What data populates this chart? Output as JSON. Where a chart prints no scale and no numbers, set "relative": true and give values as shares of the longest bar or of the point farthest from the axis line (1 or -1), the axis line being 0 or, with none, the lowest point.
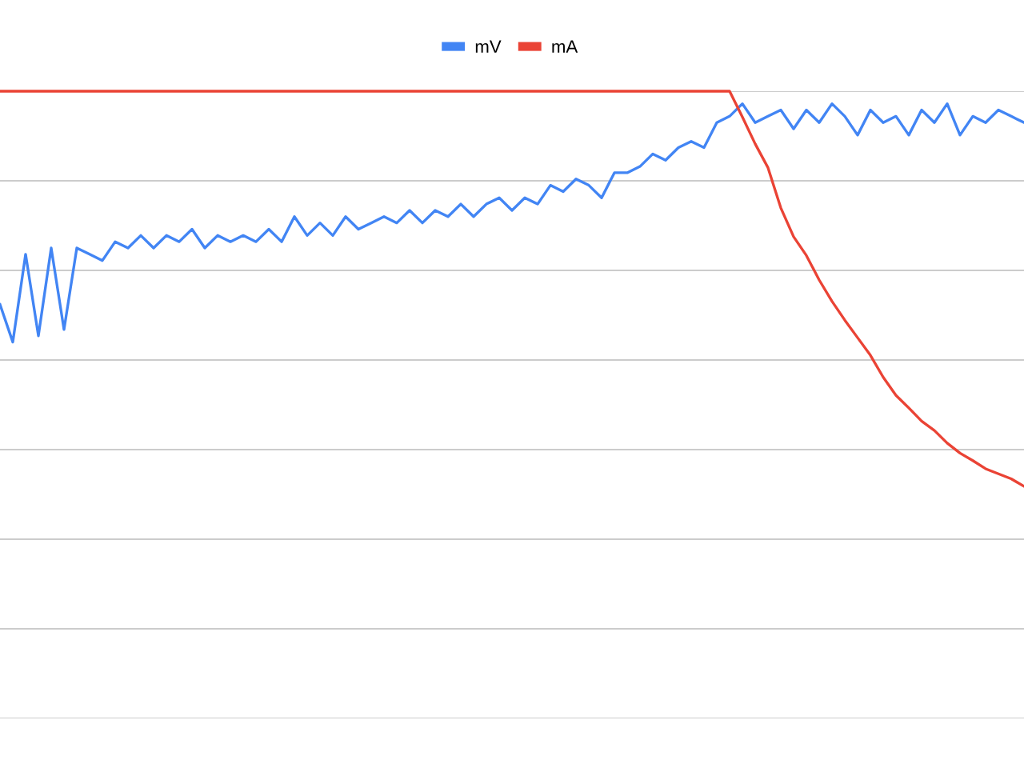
{
  "chart_data": {
    "type": "line",
    "relative": true,
    "grid": "y",
    "legend": "top",
    "marker": "none",
    "line_style": "solid",
    "categories": [
      null,
      null,
      null,
      null,
      null,
      null,
      null,
      null,
      null,
      null,
      null,
      null,
      null,
      null,
      null,
      null,
      null,
      null,
      null,
      null,
      null,
      null,
      null,
      null,
      null,
      null,
      null,
      null,
      null,
      null,
      null,
      null,
      null,
      null,
      null,
      null,
      null,
      null,
      null,
      null,
      null,
      null,
      null,
      null,
      null,
      null,
      null,
      null,
      null,
      null,
      null,
      null,
      null,
      null,
      null,
      null,
      null,
      null,
      null,
      null,
      null,
      null,
      null,
      null,
      null,
      null,
      null,
      null,
      null,
      null,
      null,
      null,
      null,
      null,
      null,
      null,
      null,
      null,
      null,
      null,
      null
    ],
    "series": [
      {
        "name": "mV",
        "color": "#4285f4",
        "values": [
          0.66,
          0.6,
          0.74,
          0.61,
          0.75,
          0.62,
          0.75,
          0.74,
          0.73,
          0.76,
          0.75,
          0.77,
          0.75,
          0.77,
          0.76,
          0.78,
          0.75,
          0.77,
          0.76,
          0.77,
          0.76,
          0.78,
          0.76,
          0.8,
          0.77,
          0.79,
          0.77,
          0.8,
          0.78,
          0.79,
          0.8,
          0.79,
          0.81,
          0.79,
          0.81,
          0.8,
          0.82,
          0.8,
          0.82,
          0.83,
          0.81,
          0.83,
          0.82,
          0.85,
          0.84,
          0.86,
          0.85,
          0.83,
          0.87,
          0.87,
          0.88,
          0.9,
          0.89,
          0.91,
          0.92,
          0.91,
          0.95,
          0.96,
          0.98,
          0.95,
          0.96,
          0.97,
          0.94,
          0.97,
          0.95,
          0.98,
          0.96,
          0.93,
          0.97,
          0.95,
          0.96,
          0.93,
          0.97,
          0.95,
          0.98,
          0.93,
          0.96,
          0.95,
          0.97,
          0.96,
          0.95
        ]
      },
      {
        "name": "mA",
        "color": "#ea4335",
        "values": [
          1,
          1,
          1,
          1,
          1,
          1,
          1,
          1,
          1,
          1,
          1,
          1,
          1,
          1,
          1,
          1,
          1,
          1,
          1,
          1,
          1,
          1,
          1,
          1,
          1,
          1,
          1,
          1,
          1,
          1,
          1,
          1,
          1,
          1,
          1,
          1,
          1,
          1,
          1,
          1,
          1,
          1,
          1,
          1,
          1,
          1,
          1,
          1,
          1,
          1,
          1,
          1,
          1,
          1,
          1,
          1,
          1,
          1,
          0.959,
          0.916,
          0.878,
          0.814,
          0.768,
          0.738,
          0.699,
          0.665,
          0.635,
          0.607,
          0.579,
          0.544,
          0.515,
          0.495,
          0.474,
          0.459,
          0.439,
          0.423,
          0.411,
          0.398,
          0.39,
          0.382,
          0.37
        ]
      }
    ]
  }
}
